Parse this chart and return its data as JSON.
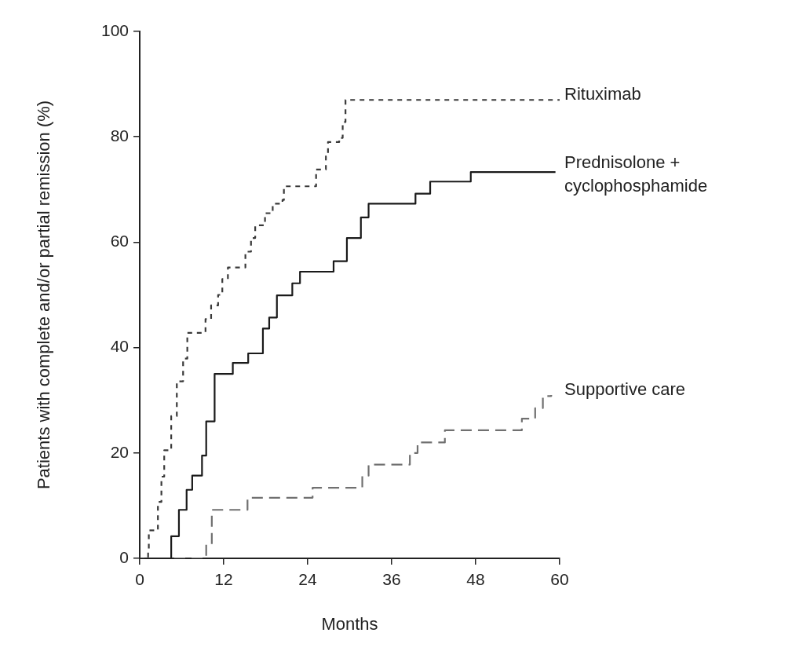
{
  "chart_data": {
    "type": "step",
    "xlabel": "Months",
    "ylabel": "Patients with complete and/or partial remission (%)",
    "xlim": [
      0,
      60
    ],
    "xticks": [
      0,
      12,
      24,
      36,
      48,
      60
    ],
    "ylim": [
      0,
      100
    ],
    "yticks": [
      0,
      20,
      40,
      60,
      80,
      100
    ],
    "grid": false,
    "legend": false,
    "marker": "none",
    "series": [
      {
        "name": "Rituximab",
        "color": "#3a3a3a",
        "line_style": "dotted",
        "x": [
          0,
          1.2,
          1.3,
          2.6,
          3.1,
          3.5,
          4.5,
          5.3,
          6.2,
          6.8,
          9.4,
          10.2,
          11.2,
          11.8,
          12.6,
          15.1,
          15.9,
          16.5,
          17.9,
          19,
          20.4,
          20.6,
          25.2,
          26.6,
          26.9,
          28.5,
          29,
          29.4,
          60
        ],
        "values": [
          0,
          1.2,
          5.3,
          10.7,
          15.5,
          20.5,
          27,
          33.6,
          37.9,
          42.8,
          45.4,
          48,
          50,
          53,
          55.2,
          58.2,
          60.8,
          63.2,
          65.5,
          67.3,
          68,
          70.6,
          73.8,
          76.3,
          79,
          79.8,
          82.8,
          87,
          87
        ]
      },
      {
        "name": "Prednisolone + cyclophosphamide",
        "color": "#1a1a1a",
        "line_style": "solid",
        "x": [
          0,
          4.5,
          5.6,
          6.7,
          7.5,
          8.9,
          9.5,
          10.7,
          13.3,
          15.5,
          17.6,
          18.5,
          19.6,
          21.8,
          22.9,
          27.7,
          29.6,
          31.6,
          32.7,
          39.4,
          41.5,
          47.3,
          59.4
        ],
        "values": [
          0,
          4.2,
          9.2,
          13,
          15.7,
          19.5,
          26,
          35,
          37.1,
          38.9,
          43.6,
          45.7,
          49.9,
          52.2,
          54.4,
          56.4,
          60.8,
          64.7,
          67.3,
          69.2,
          71.5,
          73.3,
          73.3
        ]
      },
      {
        "name": "Supportive care",
        "color": "#707070",
        "line_style": "dashed",
        "x": [
          0,
          9.5,
          10.3,
          15.4,
          24.7,
          31.8,
          32.7,
          38.6,
          39.7,
          43.6,
          54.6,
          56.5,
          57.6,
          58.8
        ],
        "values": [
          0,
          2.7,
          9.2,
          11.5,
          13.4,
          15.7,
          17.8,
          20,
          22,
          24.3,
          26.5,
          28.5,
          30.8,
          31
        ]
      }
    ]
  }
}
